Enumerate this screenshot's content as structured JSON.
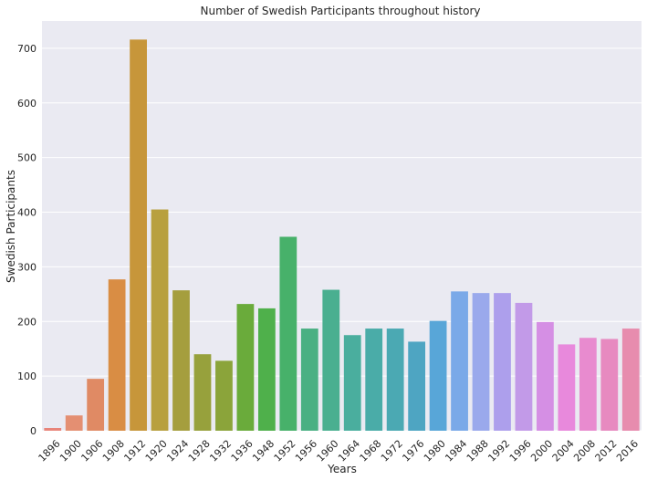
{
  "chart_data": {
    "type": "bar",
    "title": "Number of Swedish Participants throughout history",
    "xlabel": "Years",
    "ylabel": "Swedish Participants",
    "ylim": [
      0,
      750
    ],
    "yticks": [
      0,
      100,
      200,
      300,
      400,
      500,
      600,
      700
    ],
    "grid": true,
    "categories": [
      "1896",
      "1900",
      "1906",
      "1908",
      "1912",
      "1920",
      "1924",
      "1928",
      "1932",
      "1936",
      "1948",
      "1952",
      "1956",
      "1960",
      "1964",
      "1968",
      "1972",
      "1976",
      "1980",
      "1984",
      "1988",
      "1992",
      "1996",
      "2000",
      "2004",
      "2008",
      "2012",
      "2016"
    ],
    "values": [
      5,
      28,
      95,
      277,
      716,
      405,
      257,
      140,
      128,
      232,
      224,
      355,
      187,
      258,
      175,
      187,
      187,
      163,
      201,
      255,
      252,
      252,
      234,
      199,
      158,
      170,
      168,
      187
    ],
    "colors": [
      "#e8847a",
      "#e48f72",
      "#e08a64",
      "#d98d44",
      "#c7963a",
      "#b8a03f",
      "#a59e3e",
      "#97a13c",
      "#8ba43a",
      "#6aab3b",
      "#4fb04b",
      "#47b16a",
      "#4ab083",
      "#4aaf90",
      "#4aae9e",
      "#4aaca8",
      "#4ba9b3",
      "#4ea5c2",
      "#58a6d8",
      "#7aa9e8",
      "#9aa9ec",
      "#ad9fec",
      "#c29ae8",
      "#d58fe4",
      "#e889dc",
      "#e88bcf",
      "#e78ac0",
      "#e78cae"
    ],
    "background_color": "#eaeaf2",
    "grid_color": "#ffffff"
  }
}
